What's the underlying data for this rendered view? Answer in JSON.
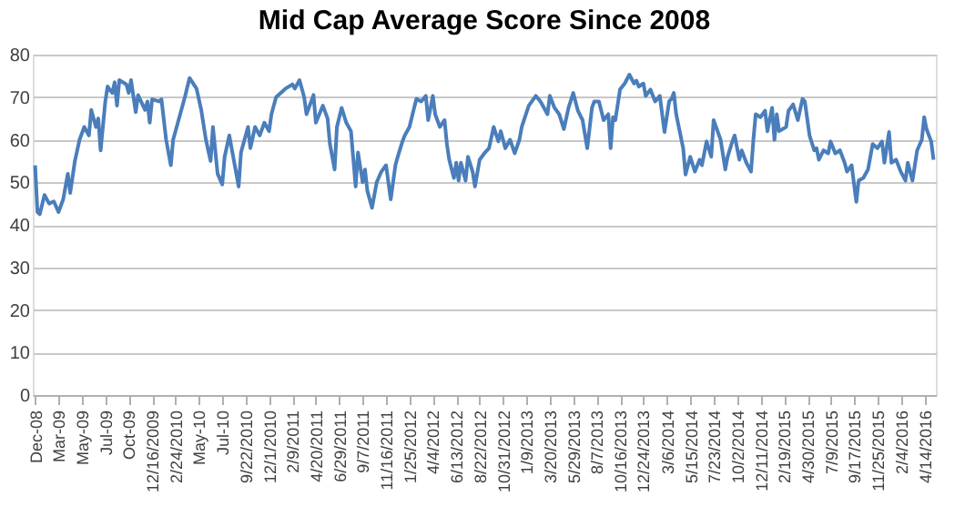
{
  "chart_data": {
    "type": "line",
    "title": "Mid Cap Average Score Since 2008",
    "x": [
      "2008-12-31",
      "2009-01-07",
      "2009-01-14",
      "2009-01-28",
      "2009-02-11",
      "2009-02-25",
      "2009-03-11",
      "2009-03-25",
      "2009-04-08",
      "2009-04-15",
      "2009-04-29",
      "2009-05-13",
      "2009-05-27",
      "2009-06-10",
      "2009-06-17",
      "2009-07-01",
      "2009-07-08",
      "2009-07-15",
      "2009-07-29",
      "2009-08-05",
      "2009-08-19",
      "2009-08-26",
      "2009-09-02",
      "2009-09-09",
      "2009-09-30",
      "2009-10-07",
      "2009-10-14",
      "2009-10-28",
      "2009-11-04",
      "2009-11-25",
      "2009-12-02",
      "2009-12-09",
      "2009-12-16",
      "2010-01-06",
      "2010-01-13",
      "2010-01-27",
      "2010-02-03",
      "2010-02-10",
      "2010-02-17",
      "2010-03-10",
      "2010-03-24",
      "2010-04-07",
      "2010-04-28",
      "2010-05-12",
      "2010-05-26",
      "2010-06-09",
      "2010-06-16",
      "2010-06-30",
      "2010-07-14",
      "2010-07-21",
      "2010-08-04",
      "2010-08-18",
      "2010-09-01",
      "2010-09-08",
      "2010-09-29",
      "2010-10-06",
      "2010-10-20",
      "2010-11-03",
      "2010-11-17",
      "2010-12-01",
      "2010-12-08",
      "2010-12-22",
      "2011-01-19",
      "2011-02-09",
      "2011-02-16",
      "2011-03-02",
      "2011-03-16",
      "2011-03-23",
      "2011-04-13",
      "2011-04-20",
      "2011-05-11",
      "2011-05-25",
      "2011-06-01",
      "2011-06-15",
      "2011-06-22",
      "2011-07-06",
      "2011-07-20",
      "2011-08-03",
      "2011-08-17",
      "2011-08-24",
      "2011-09-07",
      "2011-09-14",
      "2011-09-21",
      "2011-10-05",
      "2011-10-19",
      "2011-11-02",
      "2011-11-16",
      "2011-11-30",
      "2011-12-14",
      "2011-12-21",
      "2012-01-04",
      "2012-01-11",
      "2012-01-25",
      "2012-02-08",
      "2012-02-15",
      "2012-02-29",
      "2012-03-14",
      "2012-03-21",
      "2012-04-04",
      "2012-04-11",
      "2012-04-25",
      "2012-05-09",
      "2012-05-16",
      "2012-05-23",
      "2012-06-06",
      "2012-06-13",
      "2012-06-20",
      "2012-06-27",
      "2012-07-11",
      "2012-07-18",
      "2012-08-01",
      "2012-08-08",
      "2012-08-22",
      "2012-09-05",
      "2012-09-19",
      "2012-10-03",
      "2012-10-17",
      "2012-10-24",
      "2012-11-07",
      "2012-11-21",
      "2012-12-05",
      "2012-12-19",
      "2012-12-26",
      "2013-01-16",
      "2013-02-06",
      "2013-02-20",
      "2013-03-13",
      "2013-03-20",
      "2013-04-03",
      "2013-04-17",
      "2013-05-01",
      "2013-05-15",
      "2013-05-29",
      "2013-06-12",
      "2013-06-26",
      "2013-07-10",
      "2013-07-24",
      "2013-07-31",
      "2013-08-14",
      "2013-08-28",
      "2013-09-11",
      "2013-09-18",
      "2013-09-25",
      "2013-10-02",
      "2013-10-16",
      "2013-10-30",
      "2013-11-13",
      "2013-11-27",
      "2013-12-04",
      "2013-12-11",
      "2013-12-25",
      "2014-01-01",
      "2014-01-15",
      "2014-01-29",
      "2014-02-12",
      "2014-02-26",
      "2014-03-12",
      "2014-03-19",
      "2014-03-26",
      "2014-04-02",
      "2014-04-23",
      "2014-04-30",
      "2014-05-14",
      "2014-05-28",
      "2014-06-11",
      "2014-06-18",
      "2014-07-02",
      "2014-07-16",
      "2014-07-23",
      "2014-08-13",
      "2014-08-27",
      "2014-09-03",
      "2014-09-17",
      "2014-09-24",
      "2014-10-08",
      "2014-10-15",
      "2014-10-29",
      "2014-11-12",
      "2014-11-19",
      "2014-11-26",
      "2014-12-10",
      "2014-12-24",
      "2014-12-31",
      "2015-01-14",
      "2015-01-21",
      "2015-01-28",
      "2015-02-04",
      "2015-02-25",
      "2015-03-04",
      "2015-03-18",
      "2015-04-01",
      "2015-04-15",
      "2015-04-22",
      "2015-05-06",
      "2015-05-20",
      "2015-05-27",
      "2015-06-03",
      "2015-06-17",
      "2015-07-01",
      "2015-07-08",
      "2015-07-22",
      "2015-08-05",
      "2015-08-19",
      "2015-08-26",
      "2015-09-09",
      "2015-09-23",
      "2015-09-30",
      "2015-10-14",
      "2015-10-28",
      "2015-11-11",
      "2015-11-25",
      "2015-12-09",
      "2015-12-16",
      "2015-12-30",
      "2016-01-06",
      "2016-01-20",
      "2016-02-03",
      "2016-02-17",
      "2016-02-24",
      "2016-03-09",
      "2016-03-23",
      "2016-04-06",
      "2016-04-13",
      "2016-04-20",
      "2016-05-04",
      "2016-05-11"
    ],
    "series": [
      {
        "color": "#4a7ebb",
        "values": [
          54,
          43,
          42.5,
          47,
          45,
          45.5,
          43,
          46,
          52,
          47.5,
          55,
          60,
          63,
          61,
          67,
          63,
          65,
          57.5,
          69,
          72.5,
          71,
          73.5,
          68,
          74,
          73,
          71,
          74,
          66.5,
          70.5,
          67,
          69,
          64,
          69.5,
          69,
          69.5,
          60,
          57,
          54,
          60,
          66,
          70,
          74.5,
          72,
          67,
          60,
          55,
          63,
          52,
          49.5,
          56,
          61,
          55,
          49,
          57,
          63,
          58,
          63,
          61,
          64,
          62,
          66,
          70,
          72,
          73,
          72,
          74,
          70,
          66,
          70.5,
          64,
          68,
          65,
          59,
          53,
          63,
          67.5,
          64,
          62,
          49,
          57,
          50,
          53,
          48,
          44,
          50,
          52.5,
          54,
          46,
          54,
          56,
          59.6,
          61,
          63,
          67.5,
          69.6,
          69,
          70.3,
          64.6,
          70.3,
          66,
          63,
          64.6,
          59,
          55.3,
          51,
          54.6,
          50.4,
          54.6,
          50.4,
          56,
          52.5,
          49,
          55.3,
          56.8,
          58,
          63,
          59.6,
          62,
          58,
          60,
          56.8,
          60,
          63,
          68,
          70.3,
          69,
          66,
          70.3,
          67.5,
          66,
          62.5,
          67.5,
          71,
          66.8,
          64.6,
          58,
          67.5,
          69,
          69,
          64.6,
          66,
          58,
          65.3,
          64.6,
          71.8,
          73.2,
          75.3,
          73.2,
          73.9,
          72.5,
          73.2,
          70.3,
          71.8,
          69,
          70.3,
          61.8,
          69,
          69.6,
          71,
          66,
          58,
          51.8,
          56,
          52.5,
          55.3,
          54,
          59.6,
          56,
          64.6,
          60,
          53,
          56,
          59.6,
          61,
          55.3,
          57.5,
          54.6,
          52.5,
          60,
          66,
          65.3,
          66.8,
          62,
          67.5,
          60,
          66,
          62,
          63,
          66.8,
          68.3,
          64.6,
          69.6,
          69,
          61,
          57.5,
          58,
          55.3,
          57.5,
          56.8,
          59.6,
          56.8,
          57.5,
          54.6,
          52.5,
          54,
          45.4,
          50.4,
          51,
          53,
          59,
          58,
          59.6,
          54.6,
          61.8,
          54.6,
          55.3,
          52.5,
          50.4,
          54.6,
          50.4,
          57.5,
          60,
          65.3,
          62.5,
          59.6,
          55.3
        ]
      }
    ],
    "xlim": [
      "2008-12-24",
      "2016-05-18"
    ],
    "xticks": [
      {
        "value": "2008-12-31",
        "label": "Dec-08"
      },
      {
        "value": "2009-03-11",
        "label": "Mar-09"
      },
      {
        "value": "2009-05-20",
        "label": "May-09"
      },
      {
        "value": "2009-07-29",
        "label": "Jul-09"
      },
      {
        "value": "2009-10-07",
        "label": "Oct-09"
      },
      {
        "value": "2009-12-16",
        "label": "12/16/2009"
      },
      {
        "value": "2010-02-24",
        "label": "2/24/2010"
      },
      {
        "value": "2010-05-05",
        "label": "May-10"
      },
      {
        "value": "2010-07-14",
        "label": "Jul-10"
      },
      {
        "value": "2010-09-22",
        "label": "9/22/2010"
      },
      {
        "value": "2010-12-01",
        "label": "12/1/2010"
      },
      {
        "value": "2011-02-09",
        "label": "2/9/2011"
      },
      {
        "value": "2011-04-20",
        "label": "4/20/2011"
      },
      {
        "value": "2011-06-29",
        "label": "6/29/2011"
      },
      {
        "value": "2011-09-07",
        "label": "9/7/2011"
      },
      {
        "value": "2011-11-16",
        "label": "11/16/2011"
      },
      {
        "value": "2012-01-25",
        "label": "1/25/2012"
      },
      {
        "value": "2012-04-04",
        "label": "4/4/2012"
      },
      {
        "value": "2012-06-13",
        "label": "6/13/2012"
      },
      {
        "value": "2012-08-22",
        "label": "8/22/2012"
      },
      {
        "value": "2012-10-31",
        "label": "10/31/2012"
      },
      {
        "value": "2013-01-09",
        "label": "1/9/2013"
      },
      {
        "value": "2013-03-20",
        "label": "3/20/2013"
      },
      {
        "value": "2013-05-29",
        "label": "5/29/2013"
      },
      {
        "value": "2013-08-07",
        "label": "8/7/2013"
      },
      {
        "value": "2013-10-16",
        "label": "10/16/2013"
      },
      {
        "value": "2013-12-24",
        "label": "12/24/2013"
      },
      {
        "value": "2014-03-06",
        "label": "3/6/2014"
      },
      {
        "value": "2014-05-15",
        "label": "5/15/2014"
      },
      {
        "value": "2014-07-23",
        "label": "7/23/2014"
      },
      {
        "value": "2014-10-02",
        "label": "10/2/2014"
      },
      {
        "value": "2014-12-11",
        "label": "12/11/2014"
      },
      {
        "value": "2015-02-19",
        "label": "2/19/2015"
      },
      {
        "value": "2015-04-30",
        "label": "4/30/2015"
      },
      {
        "value": "2015-07-09",
        "label": "7/9/2015"
      },
      {
        "value": "2015-09-17",
        "label": "9/17/2015"
      },
      {
        "value": "2015-11-25",
        "label": "11/25/2015"
      },
      {
        "value": "2016-02-04",
        "label": "2/4/2016"
      },
      {
        "value": "2016-04-14",
        "label": "4/14/2016"
      }
    ],
    "ylim": [
      0,
      80
    ],
    "yticks": [
      0,
      10,
      20,
      30,
      40,
      50,
      60,
      70,
      80
    ],
    "grid": "y",
    "marker": "none",
    "line_style": "solid"
  }
}
